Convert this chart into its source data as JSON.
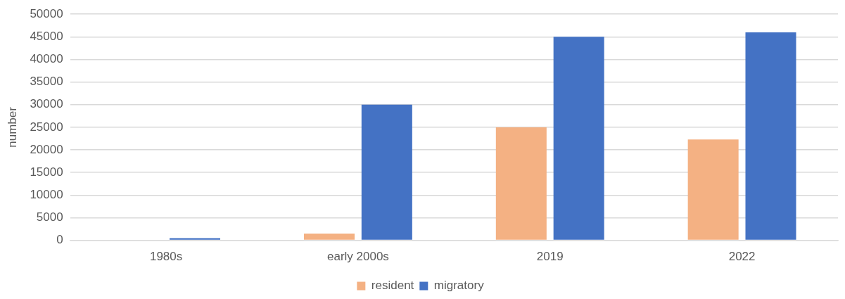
{
  "chart_data": {
    "type": "bar",
    "ylabel": "number",
    "categories": [
      "1980s",
      "early 2000s",
      "2019",
      "2022"
    ],
    "series": [
      {
        "name": "resident",
        "color": "#f4b183",
        "values": [
          null,
          1500,
          25000,
          22300
        ]
      },
      {
        "name": "migratory",
        "color": "#4472c4",
        "values": [
          500,
          30000,
          45000,
          46000
        ]
      }
    ],
    "ylim": [
      0,
      50000
    ],
    "yticks": [
      0,
      5000,
      10000,
      15000,
      20000,
      25000,
      30000,
      35000,
      40000,
      45000,
      50000
    ],
    "grid": "y",
    "legend": "bottom"
  }
}
